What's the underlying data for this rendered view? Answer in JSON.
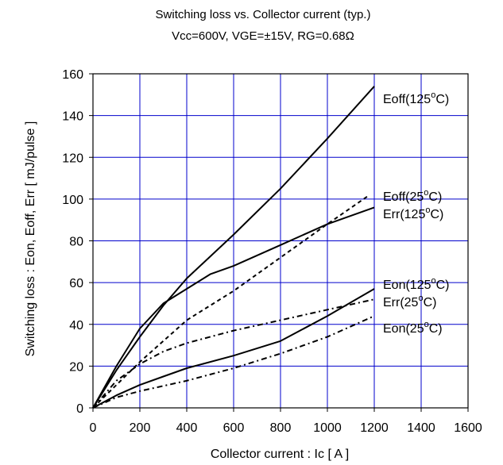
{
  "chart_data": {
    "type": "line",
    "title": "Switching loss vs. Collector current (typ.)",
    "subtitle": "Vcc=600V, VGE=±15V, RG=0.68Ω",
    "xlabel": "Collector current : Ic [ A ]",
    "ylabel": "Switching loss : Eon, Eoff, Err [ mJ/pulse ]",
    "xlim": [
      0,
      1600
    ],
    "ylim": [
      0,
      160
    ],
    "xticks": [
      "0",
      "200",
      "400",
      "600",
      "800",
      "1000",
      "1200",
      "1400",
      "1600"
    ],
    "yticks": [
      "0",
      "20",
      "40",
      "60",
      "80",
      "100",
      "120",
      "140",
      "160"
    ],
    "grid": true,
    "grid_color": "#0000cc",
    "series": [
      {
        "name": "Eoff(125°C)",
        "label_main": "Eoff(125",
        "label_sup": "o",
        "label_end": "C)",
        "style": "solid",
        "x": [
          0,
          100,
          200,
          300,
          400,
          600,
          800,
          1000,
          1200
        ],
        "y": [
          0,
          18,
          34,
          49,
          62,
          83,
          105,
          129,
          154
        ]
      },
      {
        "name": "Eoff(25°C)",
        "label_main": "Eoff(25",
        "label_sup": "o",
        "label_end": "C)",
        "style": "dash",
        "x": [
          0,
          100,
          200,
          400,
          600,
          800,
          1000,
          1180
        ],
        "y": [
          0,
          11,
          22,
          42,
          56,
          72,
          88,
          102
        ]
      },
      {
        "name": "Err(125°C)",
        "label_main": "Err(125",
        "label_sup": "o",
        "label_end": "C)",
        "style": "solid",
        "x": [
          0,
          100,
          200,
          300,
          400,
          500,
          600,
          800,
          1000,
          1200
        ],
        "y": [
          0,
          20,
          38,
          50,
          57,
          64,
          68,
          78,
          88,
          96
        ]
      },
      {
        "name": "Eon(125°C)",
        "label_main": "Eon(125",
        "label_sup": "o",
        "label_end": "C)",
        "style": "solid",
        "x": [
          0,
          100,
          200,
          300,
          400,
          600,
          800,
          1000,
          1200
        ],
        "y": [
          0,
          6,
          11,
          15,
          19,
          25,
          32,
          44,
          57
        ]
      },
      {
        "name": "Err(25°C)",
        "label_main": "Err(25",
        "label_sup": "o",
        "label_end": "C)",
        "style": "dashdot",
        "x": [
          0,
          100,
          200,
          300,
          400,
          600,
          800,
          1000,
          1200
        ],
        "y": [
          0,
          13,
          21,
          27,
          31,
          37,
          42,
          47,
          52
        ]
      },
      {
        "name": "Eon(25°C)",
        "label_main": "Eon(25",
        "label_sup": "o",
        "label_end": "C)",
        "style": "dashdot",
        "x": [
          0,
          100,
          200,
          400,
          600,
          800,
          1000,
          1200
        ],
        "y": [
          0,
          5,
          8,
          13,
          19,
          26,
          34,
          44
        ]
      }
    ]
  }
}
